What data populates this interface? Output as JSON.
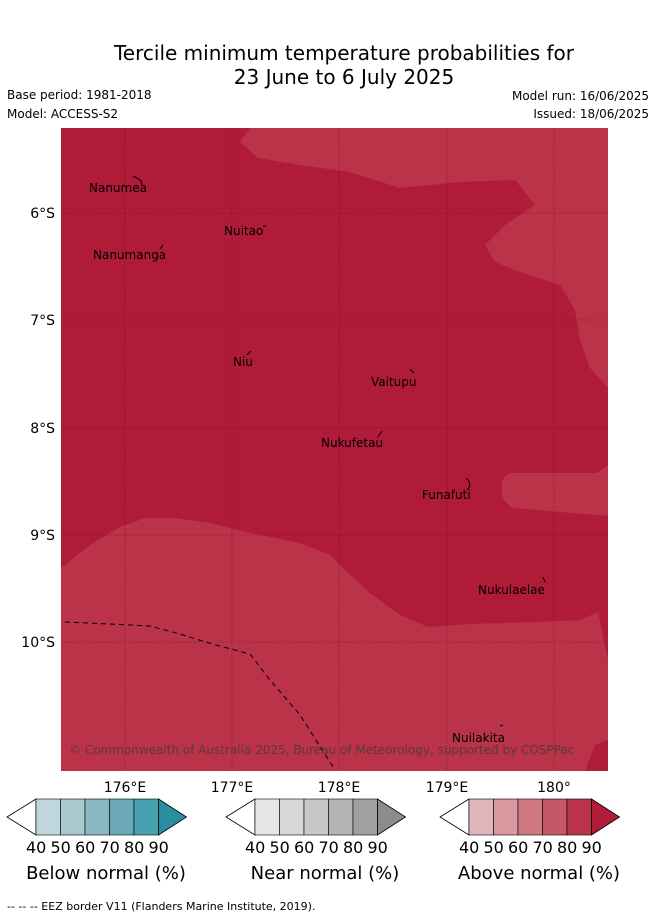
{
  "title_line1": "Tercile minimum temperature probabilities for",
  "title_line2": "23 June to 6 July 2025",
  "meta": {
    "base_period": "Base period: 1981-2018",
    "model": "Model: ACCESS-S2",
    "model_run": "Model run: 16/06/2025",
    "issued": "Issued: 18/06/2025"
  },
  "map": {
    "lon_ticks": [
      "176°E",
      "177°E",
      "178°E",
      "179°E",
      "180°"
    ],
    "lat_ticks": [
      "6°S",
      "7°S",
      "8°S",
      "9°S",
      "10°S"
    ],
    "places": [
      "Nanumea",
      "Nuitao",
      "Nanumanga",
      "Niu",
      "Vaitupu",
      "Nukufetau",
      "Funafuti",
      "Nukulaelae",
      "Nuilakita"
    ],
    "copyright": "© Commonwealth of Australia 2025, Bureau of Meteorology, supported by COSPPac"
  },
  "colorbars": [
    {
      "label": "Below normal (%)",
      "ticks": [
        "40",
        "50",
        "60",
        "70",
        "80",
        "90"
      ],
      "colors": [
        "#ffffff",
        "#bfd6dc",
        "#a8c9cf",
        "#8bb7c2",
        "#6aa8b8",
        "#48a1b0",
        "#2a8ea0"
      ]
    },
    {
      "label": "Near normal (%)",
      "ticks": [
        "40",
        "50",
        "60",
        "70",
        "80",
        "90"
      ],
      "colors": [
        "#ffffff",
        "#e6e6e6",
        "#d8d8d8",
        "#c8c8c8",
        "#b4b4b4",
        "#a0a0a0",
        "#8c8c8c"
      ]
    },
    {
      "label": "Above normal (%)",
      "ticks": [
        "40",
        "50",
        "60",
        "70",
        "80",
        "90"
      ],
      "colors": [
        "#ffffff",
        "#e0b6bd",
        "#d9979f",
        "#d07880",
        "#c35868",
        "#ba3349",
        "#b01c38"
      ]
    }
  ],
  "footnote": "-- -- -- EEZ border V11 (Flanders Marine Institute, 2019).",
  "colors": {
    "dark_red": "#b01c38",
    "mid_red": "#ba3349"
  }
}
